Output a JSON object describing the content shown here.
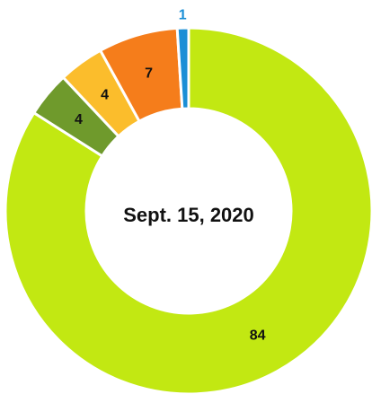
{
  "chart_data": {
    "type": "donut",
    "center_label": "Sept. 15, 2020",
    "values": [
      84,
      4,
      4,
      7,
      1
    ],
    "colors": [
      "#c2e812",
      "#6f9a2c",
      "#fbbd2c",
      "#f57d1b",
      "#1b8fd6"
    ]
  }
}
